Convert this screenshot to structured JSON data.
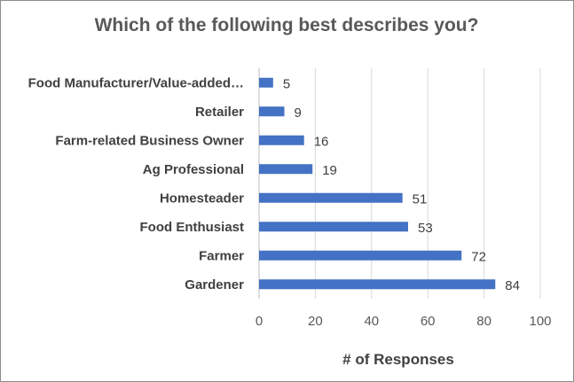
{
  "chart_data": {
    "type": "bar",
    "orientation": "horizontal",
    "title": "Which of the following best describes you?",
    "xlabel": "# of Responses",
    "ylabel": "",
    "categories": [
      "Food Manufacturer/Value-added…",
      "Retailer",
      "Farm-related Business Owner",
      "Ag Professional",
      "Homesteader",
      "Food Enthusiast",
      "Farmer",
      "Gardener"
    ],
    "values": [
      5,
      9,
      16,
      19,
      51,
      53,
      72,
      84
    ],
    "xlim": [
      0,
      100
    ],
    "xticks": [
      0,
      20,
      40,
      60,
      80,
      100
    ],
    "grid": true,
    "legend": "none",
    "bar_color": "#4472c4"
  }
}
